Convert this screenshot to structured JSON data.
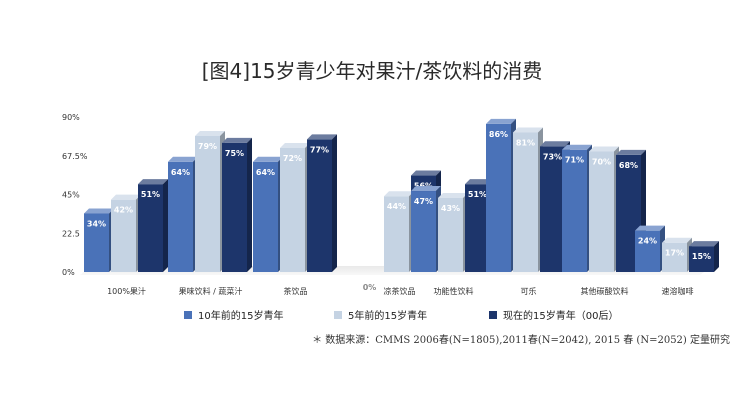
{
  "chart_data": {
    "type": "bar",
    "title": "[图4]15岁青少年对果汁/茶饮料的消费",
    "categories": [
      "100%果汁",
      "果味饮料 / 蔬菜汁",
      "茶饮品",
      "凉茶饮品",
      "功能性饮料",
      "可乐",
      "其他碳酸饮料",
      "速溶咖啡"
    ],
    "series": [
      {
        "name": "10年前的15岁青年",
        "color": "#4a72b8",
        "values": [
          34,
          64,
          64,
          0,
          47,
          86,
          71,
          24
        ],
        "labels": [
          "34%",
          "64%",
          "64%",
          "0%",
          "47%",
          "86%",
          "71%",
          "24%"
        ]
      },
      {
        "name": "5年前的15岁青年",
        "color": "#c5d3e3",
        "values": [
          42,
          79,
          72,
          44,
          43,
          81,
          70,
          17
        ],
        "labels": [
          "42%",
          "79%",
          "72%",
          "44%",
          "43%",
          "81%",
          "70%",
          "17%"
        ]
      },
      {
        "name": "现在的15岁青年（00后）",
        "color": "#1d356b",
        "values": [
          51,
          75,
          77,
          56,
          51,
          73,
          68,
          15
        ],
        "labels": [
          "51%",
          "75%",
          "77%",
          "56%",
          "51%",
          "73%",
          "68%",
          "15%"
        ]
      }
    ],
    "ylim": [
      0,
      90
    ],
    "yticks": [
      "0%",
      "22.5",
      "45%",
      "67.5%",
      "90%"
    ],
    "ytick_values": [
      0,
      22.5,
      45,
      67.5,
      90
    ],
    "legend_position": "bottom",
    "source": "＊ 数据来源：CMMS 2006春(N=1805),2011春(N=2042), 2015 春 (N=2052) 定量研究"
  }
}
